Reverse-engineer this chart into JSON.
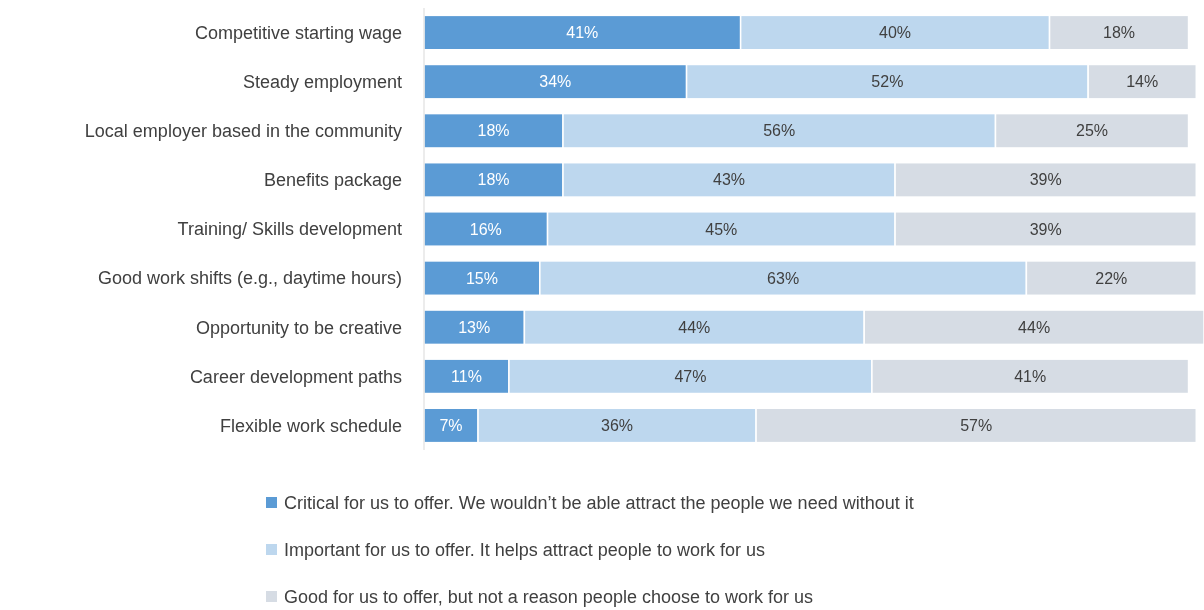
{
  "chart_data": {
    "type": "bar",
    "orientation": "horizontal",
    "stacked": true,
    "legend": "bottom",
    "xlim": [
      0,
      101
    ],
    "categories": [
      "Competitive starting wage",
      "Steady employment",
      "Local employer based in the community",
      "Benefits package",
      "Training/ Skills development",
      "Good work shifts (e.g., daytime hours)",
      "Opportunity to be creative",
      "Career development paths",
      "Flexible work schedule"
    ],
    "series": [
      {
        "name": "Critical for us to offer. We wouldn’t be able attract the people we need without it",
        "color": "#5b9bd5",
        "values": [
          41,
          34,
          18,
          18,
          16,
          15,
          13,
          11,
          7
        ],
        "value_labels": [
          "41%",
          "34%",
          "18%",
          "18%",
          "16%",
          "15%",
          "13%",
          "11%",
          "7%"
        ]
      },
      {
        "name": "Important for us to offer. It helps attract people to work for us",
        "color": "#bdd7ee",
        "values": [
          40,
          52,
          56,
          43,
          45,
          63,
          44,
          47,
          36
        ],
        "value_labels": [
          "40%",
          "52%",
          "56%",
          "43%",
          "45%",
          "63%",
          "44%",
          "47%",
          "36%"
        ]
      },
      {
        "name": "Good for us to offer, but not a reason people choose to work for us",
        "color": "#d6dce4",
        "values": [
          18,
          14,
          25,
          39,
          39,
          22,
          44,
          41,
          57
        ],
        "value_labels": [
          "18%",
          "14%",
          "25%",
          "39%",
          "39%",
          "22%",
          "44%",
          "41%",
          "57%"
        ]
      }
    ]
  }
}
